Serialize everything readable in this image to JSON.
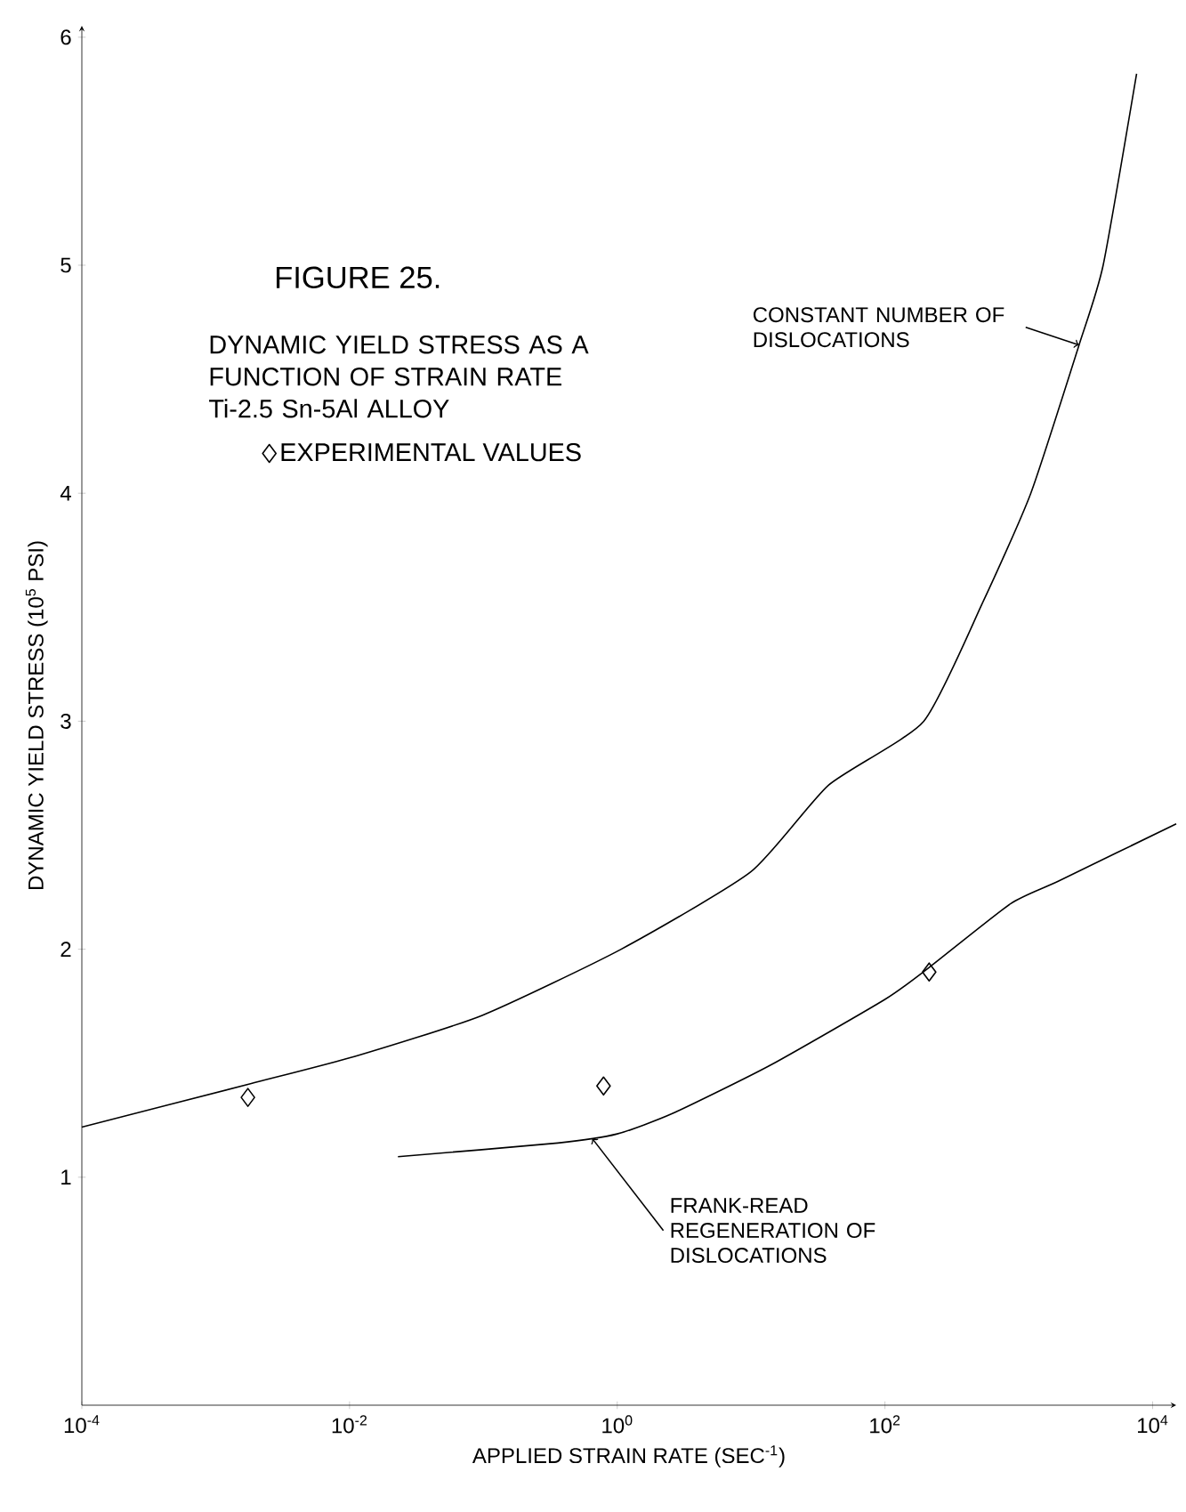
{
  "chart_data": {
    "type": "line",
    "title": "FIGURE 25.",
    "subtitle": "DYNAMIC YIELD STRESS AS A FUNCTION OF STRAIN RATE\nTi-2.5 Sn-5Al ALLOY",
    "xlabel": "APPLIED STRAIN RATE (SEC$^{-1}$)",
    "ylabel": "DYNAMIC YIELD STRESS (10$^{5}$ PSI)",
    "log": "x",
    "legend": "top left",
    "xlim": [
      0.0001,
      15000
    ],
    "xticks": [
      {
        "value": 0.0001,
        "label": "10$^{-4}$"
      },
      {
        "value": 0.01,
        "label": "10$^{-2}$"
      },
      {
        "value": 1,
        "label": "10$^{0}$"
      },
      {
        "value": 100,
        "label": "10$^{2}$"
      },
      {
        "value": 10000,
        "label": "10$^{4}$"
      }
    ],
    "ylim": [
      0,
      6.05
    ],
    "yticks": [
      1,
      2,
      3,
      4,
      5,
      6
    ],
    "series": [
      {
        "color": "#000000",
        "marker": "none",
        "line_style": "solid",
        "x": [
          0.0001,
          0.00182,
          0.011,
          0.098,
          1.07,
          10,
          38,
          195,
          537,
          1230,
          2820,
          4270,
          7590
        ],
        "values": [
          1.22,
          1.41,
          1.53,
          1.71,
          2.0,
          2.34,
          2.72,
          3.0,
          3.52,
          4.0,
          4.65,
          5.0,
          5.84
        ]
      },
      {
        "color": "#000000",
        "marker": "none",
        "line_style": "solid",
        "x": [
          0.023,
          0.36,
          1.0,
          2.6,
          13.8,
          100,
          214,
          871,
          2000,
          15000
        ],
        "values": [
          1.09,
          1.15,
          1.19,
          1.28,
          1.49,
          1.78,
          1.92,
          2.2,
          2.3,
          2.55
        ]
      },
      {
        "type": "scatter",
        "name": "EXPERIMENTAL VALUES",
        "color": "#000000",
        "marker": "diamond",
        "x": [
          0.00174,
          0.79,
          214
        ],
        "values": [
          1.35,
          1.4,
          1.9
        ]
      }
    ],
    "annotations": [
      {
        "text": "CONSTANT NUMBER OF DISLOCATIONS",
        "x": 2820,
        "y": 4.65
      },
      {
        "text": "FRANK-READ REGENERATION OF DISLOCATIONS",
        "x": 0.65,
        "y": 1.17
      }
    ]
  }
}
